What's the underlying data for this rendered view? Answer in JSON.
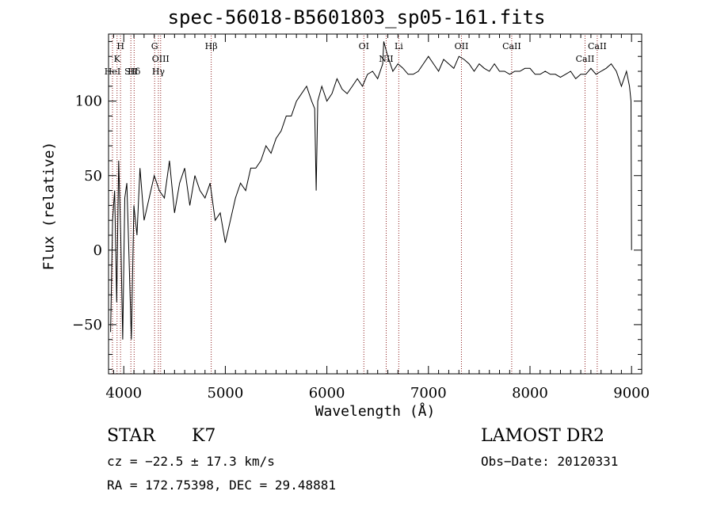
{
  "chart_data": {
    "type": "line",
    "title": "spec-56018-B5601803_sp05-161.fits",
    "xlabel": "Wavelength (Å)",
    "ylabel": "Flux (relative)",
    "xlim": [
      3850,
      9100
    ],
    "ylim": [
      -83,
      145
    ],
    "xticks": [
      4000,
      5000,
      6000,
      7000,
      8000,
      9000
    ],
    "yticks": [
      -50,
      0,
      50,
      100
    ],
    "grid": false,
    "series": [
      {
        "x": [
          3870,
          3890,
          3910,
          3930,
          3950,
          3970,
          3990,
          4010,
          4030,
          4050,
          4075,
          4100,
          4130,
          4160,
          4200,
          4250,
          4300,
          4350,
          4400,
          4450,
          4500,
          4550,
          4600,
          4650,
          4700,
          4750,
          4800,
          4850,
          4900,
          4950,
          5000,
          5050,
          5100,
          5150,
          5200,
          5250,
          5300,
          5350,
          5400,
          5450,
          5500,
          5550,
          5600,
          5650,
          5700,
          5750,
          5800,
          5850,
          5880,
          5895,
          5910,
          5950,
          6000,
          6050,
          6100,
          6150,
          6200,
          6250,
          6300,
          6350,
          6400,
          6450,
          6500,
          6550,
          6560,
          6600,
          6650,
          6700,
          6750,
          6800,
          6850,
          6900,
          6950,
          7000,
          7050,
          7100,
          7150,
          7200,
          7250,
          7300,
          7350,
          7400,
          7450,
          7500,
          7550,
          7600,
          7650,
          7700,
          7750,
          7800,
          7850,
          7900,
          7950,
          8000,
          8050,
          8100,
          8150,
          8200,
          8250,
          8300,
          8350,
          8400,
          8450,
          8500,
          8550,
          8600,
          8650,
          8700,
          8750,
          8800,
          8850,
          8900,
          8950,
          8980,
          8995,
          9000
        ],
        "y": [
          -55,
          20,
          40,
          -35,
          60,
          10,
          -60,
          35,
          45,
          0,
          -60,
          30,
          10,
          55,
          20,
          35,
          50,
          40,
          35,
          60,
          25,
          45,
          55,
          30,
          50,
          40,
          35,
          45,
          20,
          25,
          5,
          20,
          35,
          45,
          40,
          55,
          55,
          60,
          70,
          65,
          75,
          80,
          90,
          90,
          100,
          105,
          110,
          100,
          95,
          40,
          100,
          110,
          100,
          105,
          115,
          108,
          105,
          110,
          115,
          110,
          118,
          120,
          115,
          125,
          140,
          130,
          120,
          125,
          122,
          118,
          118,
          120,
          125,
          130,
          125,
          120,
          128,
          125,
          122,
          130,
          128,
          125,
          120,
          125,
          122,
          120,
          125,
          120,
          120,
          118,
          120,
          120,
          122,
          122,
          118,
          118,
          120,
          118,
          118,
          116,
          118,
          120,
          115,
          118,
          118,
          122,
          118,
          120,
          122,
          125,
          120,
          110,
          120,
          110,
          100,
          0
        ]
      }
    ],
    "lines": [
      {
        "label": "H",
        "x": 3968
      },
      {
        "label": "K",
        "x": 3934
      },
      {
        "label": "HeI",
        "x": 3889
      },
      {
        "label": "SII",
        "x": 4070
      },
      {
        "label": "Hδ",
        "x": 4102
      },
      {
        "label": "G",
        "x": 4304
      },
      {
        "label": "OIII",
        "x": 4363
      },
      {
        "label": "Hγ",
        "x": 4341
      },
      {
        "label": "Hβ",
        "x": 4861
      },
      {
        "label": "Li",
        "x": 6708
      },
      {
        "label": "NII",
        "x": 6584
      },
      {
        "label": "OI",
        "x": 6364
      },
      {
        "label": "OII",
        "x": 7325
      },
      {
        "label": "CaII",
        "x": 8662
      },
      {
        "label": "CaII",
        "x": 8542
      },
      {
        "label": "CaII",
        "x": 7820
      }
    ]
  },
  "info": {
    "object_class": "STAR",
    "subclass": "K7",
    "survey": "LAMOST DR2",
    "cz": "cz = −22.5 ± 17.3 km/s",
    "obs_date": "Obs−Date: 20120331",
    "radec": "RA = 172.75398, DEC =  29.48881"
  },
  "colors": {
    "spectrum": "#000000",
    "line_marker": "#8b1a1a"
  }
}
